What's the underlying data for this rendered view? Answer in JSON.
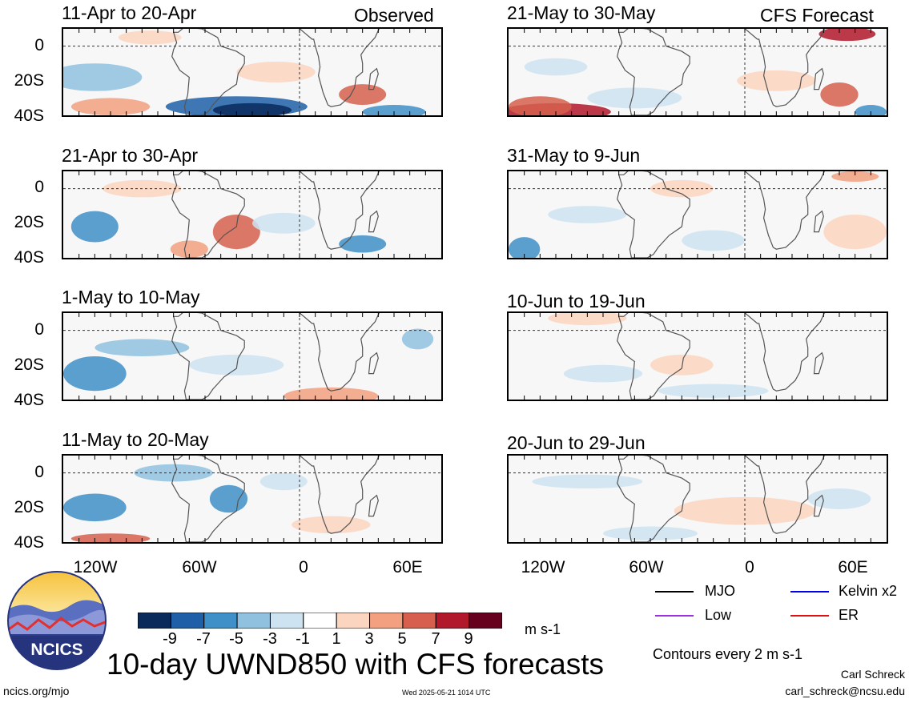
{
  "column_headers": {
    "observed": "Observed",
    "forecast": "CFS Forecast"
  },
  "left_panels": [
    {
      "title": "11-Apr to 20-Apr"
    },
    {
      "title": "21-Apr to 30-Apr"
    },
    {
      "title": "1-May to 10-May"
    },
    {
      "title": "11-May to 20-May"
    }
  ],
  "right_panels": [
    {
      "title": "21-May to 30-May"
    },
    {
      "title": "31-May to 9-Jun"
    },
    {
      "title": "10-Jun to 19-Jun"
    },
    {
      "title": "20-Jun to 29-Jun"
    }
  ],
  "lat_ticks": [
    "0",
    "20S",
    "40S"
  ],
  "lon_ticks": [
    "120W",
    "60W",
    "0",
    "60E"
  ],
  "colorbar": {
    "labels": [
      "-9",
      "-7",
      "-5",
      "-3",
      "-1",
      "1",
      "3",
      "5",
      "7",
      "9"
    ],
    "colors": [
      "#0b2a5c",
      "#1f5fa8",
      "#3f8fc8",
      "#90c2e0",
      "#cde3f1",
      "#ffffff",
      "#fbd5c0",
      "#f2a07f",
      "#d6604d",
      "#b2182b",
      "#67001f"
    ],
    "units": "m s-1"
  },
  "legend": {
    "items": [
      {
        "label": "MJO",
        "color": "#000000"
      },
      {
        "label": "Kelvin x2",
        "color": "#0000ee"
      },
      {
        "label": "Low",
        "color": "#9a30e0"
      },
      {
        "label": "ER",
        "color": "#dd1111"
      }
    ],
    "contour_note": "Contours every 2 m s-1"
  },
  "title": "10-day UWND850 with CFS forecasts",
  "logo_text": "NCICS",
  "footer": {
    "url": "ncics.org/mjo",
    "timestamp": "Wed 2025-05-21 1014 UTC",
    "author": "Carl Schreck",
    "email": "carl_schreck@ncsu.edu"
  }
}
